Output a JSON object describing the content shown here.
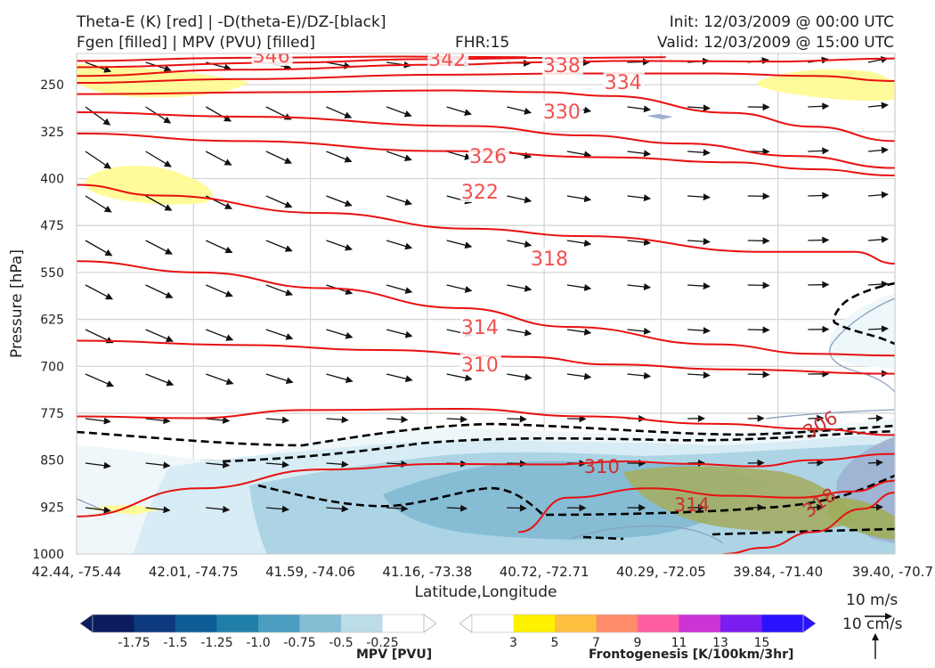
{
  "header": {
    "title_left_1": "Theta-E (K) [red] | -D(theta-E)/DZ-[black]",
    "title_left_2": "Fgen [filled] | MPV (PVU) [filled]",
    "fhr": "FHR:15",
    "init": "Init: 12/03/2009 @ 00:00 UTC",
    "valid": "Valid: 12/03/2009 @ 15:00 UTC"
  },
  "chart_data": {
    "type": "cross-section",
    "xlabel": "Latitude,Longitude",
    "ylabel": "Pressure [hPa]",
    "x_ticks": [
      "42.44, -75.44",
      "42.01, -74.75",
      "41.59, -74.06",
      "41.16, -73.38",
      "40.72, -72.71",
      "40.29, -72.05",
      "39.84, -71.40",
      "39.40, -70.7"
    ],
    "y_ticks": [
      250,
      325,
      400,
      475,
      550,
      625,
      700,
      775,
      850,
      925,
      1000
    ],
    "ylim": [
      1000,
      200
    ],
    "grid": true,
    "theta_e_contours": [
      {
        "label": "346",
        "points": [
          [
            0,
            212
          ],
          [
            0.2,
            207
          ],
          [
            0.4,
            205
          ],
          [
            0.55,
            206
          ]
        ]
      },
      {
        "label": "342",
        "points": [
          [
            0,
            222
          ],
          [
            0.25,
            215
          ],
          [
            0.43,
            209
          ],
          [
            0.6,
            207
          ],
          [
            0.72,
            206
          ]
        ]
      },
      {
        "label": "338",
        "points": [
          [
            0,
            236
          ],
          [
            0.2,
            226
          ],
          [
            0.45,
            218
          ],
          [
            0.57,
            214
          ],
          [
            0.68,
            212
          ],
          [
            0.85,
            213
          ],
          [
            1.0,
            208
          ]
        ]
      },
      {
        "label": "334",
        "points": [
          [
            0,
            247
          ],
          [
            0.2,
            241
          ],
          [
            0.45,
            234
          ],
          [
            0.62,
            232
          ],
          [
            0.78,
            232
          ],
          [
            0.9,
            236
          ],
          [
            1.0,
            244
          ]
        ]
      },
      {
        "label": "330",
        "points": [
          [
            0,
            265
          ],
          [
            0.25,
            262
          ],
          [
            0.45,
            259
          ],
          [
            0.57,
            262
          ],
          [
            0.65,
            268
          ],
          [
            0.8,
            295
          ],
          [
            0.9,
            317
          ],
          [
            1.0,
            340
          ]
        ]
      },
      {
        "label": "326",
        "points": [
          [
            0,
            294
          ],
          [
            0.2,
            301
          ],
          [
            0.48,
            316
          ],
          [
            0.62,
            331
          ],
          [
            0.74,
            344
          ],
          [
            0.88,
            364
          ],
          [
            1.0,
            383
          ]
        ]
      },
      {
        "label": "322",
        "points": [
          [
            0,
            328
          ],
          [
            0.2,
            340
          ],
          [
            0.45,
            356
          ],
          [
            0.65,
            366
          ],
          [
            0.8,
            374
          ],
          [
            0.9,
            385
          ],
          [
            1.0,
            395
          ]
        ]
      },
      {
        "label": "318",
        "points": [
          [
            0,
            410
          ],
          [
            0.1,
            427
          ],
          [
            0.3,
            455
          ],
          [
            0.48,
            480
          ],
          [
            0.62,
            492
          ],
          [
            0.84,
            517
          ],
          [
            0.95,
            517
          ],
          [
            1.0,
            536
          ]
        ]
      },
      {
        "label": "314",
        "points": [
          [
            0,
            532
          ],
          [
            0.15,
            550
          ],
          [
            0.3,
            575
          ],
          [
            0.47,
            607
          ],
          [
            0.6,
            637
          ],
          [
            0.78,
            665
          ],
          [
            0.9,
            680
          ],
          [
            1.0,
            683
          ]
        ]
      },
      {
        "label": "310",
        "points": [
          [
            0,
            659
          ],
          [
            0.2,
            666
          ],
          [
            0.37,
            674
          ],
          [
            0.55,
            685
          ],
          [
            0.65,
            697
          ],
          [
            0.8,
            705
          ],
          [
            1.0,
            712
          ]
        ]
      },
      {
        "label": "306",
        "points": [
          [
            0,
            780
          ],
          [
            0.14,
            783
          ],
          [
            0.28,
            770
          ],
          [
            0.47,
            768
          ],
          [
            0.62,
            780
          ],
          [
            0.78,
            792
          ],
          [
            0.9,
            800
          ],
          [
            1.0,
            810
          ]
        ]
      },
      {
        "label": "310",
        "points": [
          [
            0,
            940
          ],
          [
            0.15,
            895
          ],
          [
            0.3,
            865
          ],
          [
            0.45,
            856
          ],
          [
            0.58,
            857
          ],
          [
            0.67,
            852
          ],
          [
            0.75,
            856
          ],
          [
            0.83,
            860
          ],
          [
            0.9,
            850
          ],
          [
            1.0,
            840
          ]
        ]
      },
      {
        "label": "314",
        "points": [
          [
            0.54,
            965
          ],
          [
            0.6,
            910
          ],
          [
            0.7,
            895
          ],
          [
            0.8,
            907
          ],
          [
            0.88,
            910
          ],
          [
            0.95,
            900
          ],
          [
            1.0,
            883
          ]
        ]
      },
      {
        "label": "318",
        "points": [
          [
            0.79,
            1000
          ],
          [
            0.84,
            990
          ],
          [
            0.9,
            965
          ],
          [
            0.96,
            928
          ],
          [
            1.0,
            902
          ]
        ]
      }
    ],
    "colorbars": [
      {
        "name": "MPV [PVU]",
        "ticks": [
          "-1.75",
          "-1.5",
          "-1.25",
          "-1.0",
          "-0.75",
          "-0.5",
          "-0.25"
        ],
        "colors": [
          "#0b1d5e",
          "#0d3a7e",
          "#0f5d96",
          "#1f7fa9",
          "#4a9dbf",
          "#83bed5",
          "#bcdce8",
          "#ffffff"
        ]
      },
      {
        "name": "Frontogenesis [K/100km/3hr]",
        "ticks": [
          "3",
          "5",
          "7",
          "9",
          "11",
          "13",
          "15"
        ],
        "colors": [
          "#ffffff",
          "#fff200",
          "#ffc040",
          "#ff8c6a",
          "#ff5fa2",
          "#cc34d6",
          "#7a1ef0",
          "#2b12ff"
        ]
      }
    ],
    "reference_vectors": {
      "horizontal": "10 m/s",
      "vertical": "10 cm/s"
    }
  }
}
